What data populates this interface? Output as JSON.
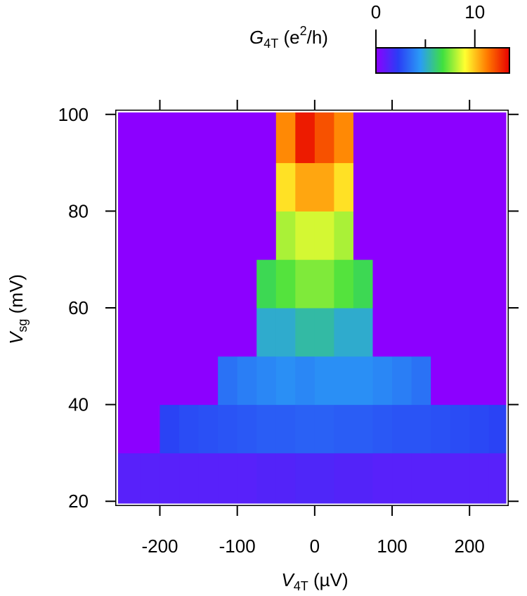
{
  "chart_data": {
    "type": "heatmap",
    "xlabel": [
      "V",
      "4T",
      " (µV)"
    ],
    "ylabel": [
      "V",
      "sg",
      " (mV)"
    ],
    "colorbar_label": [
      "G",
      "4T",
      " (e",
      "2",
      "/h)"
    ],
    "x": [
      -237.5,
      -212.5,
      -187.5,
      -162.5,
      -137.5,
      -112.5,
      -87.5,
      -62.5,
      -37.5,
      -12.5,
      12.5,
      37.5,
      62.5,
      87.5,
      112.5,
      137.5,
      162.5,
      187.5,
      212.5,
      237.5
    ],
    "y": [
      25,
      35,
      45,
      55,
      65,
      75,
      85,
      95
    ],
    "values": [
      [
        1.2,
        1.2,
        1.2,
        1.2,
        1.2,
        1.2,
        1.2,
        1.3,
        1.3,
        1.4,
        1.4,
        1.3,
        1.3,
        1.2,
        1.2,
        1.2,
        1.2,
        1.2,
        1.2,
        1.2
      ],
      [
        0,
        0,
        2.4,
        2.6,
        2.7,
        2.8,
        2.9,
        3,
        3,
        3.1,
        3.1,
        3,
        3,
        2.9,
        2.8,
        2.8,
        2.7,
        2.6,
        2.5,
        2.4
      ],
      [
        0,
        0,
        0,
        0,
        0,
        3.5,
        3.8,
        4,
        4.2,
        4,
        4.2,
        4.2,
        4.2,
        4,
        3.8,
        3.5,
        0,
        0,
        0,
        0
      ],
      [
        0,
        0,
        0,
        0,
        0,
        0,
        0,
        5,
        5,
        5.5,
        5.5,
        5,
        5,
        0,
        0,
        0,
        0,
        0,
        0,
        0
      ],
      [
        0,
        0,
        0,
        0,
        0,
        0,
        0,
        6.5,
        7,
        7.5,
        7.5,
        7,
        6.5,
        0,
        0,
        0,
        0,
        0,
        0,
        0
      ],
      [
        0,
        0,
        0,
        0,
        0,
        0,
        0,
        0,
        8,
        8.5,
        8.5,
        8,
        0,
        0,
        0,
        0,
        0,
        0,
        0,
        0
      ],
      [
        0,
        0,
        0,
        0,
        0,
        0,
        0,
        0,
        9.5,
        10.5,
        10.5,
        9.5,
        0,
        0,
        0,
        0,
        0,
        0,
        0,
        0
      ],
      [
        0,
        0,
        0,
        0,
        0,
        0,
        0,
        0,
        11,
        13,
        12,
        11,
        0,
        0,
        0,
        0,
        0,
        0,
        0,
        0
      ]
    ],
    "xlim": [
      -254,
      247
    ],
    "ylim": [
      19.6,
      100.4
    ],
    "xticks": [
      -200,
      -100,
      0,
      100,
      200
    ],
    "yticks": [
      20,
      40,
      60,
      80,
      100
    ],
    "clim": [
      0,
      13.5
    ],
    "cticks": [
      0,
      10
    ],
    "cminor_ticks": [
      5
    ],
    "colorscale": [
      "#8c00ff",
      "#2a3df5",
      "#2a9cf5",
      "#3fe03f",
      "#ffff30",
      "#ff7a00",
      "#e80000"
    ]
  }
}
